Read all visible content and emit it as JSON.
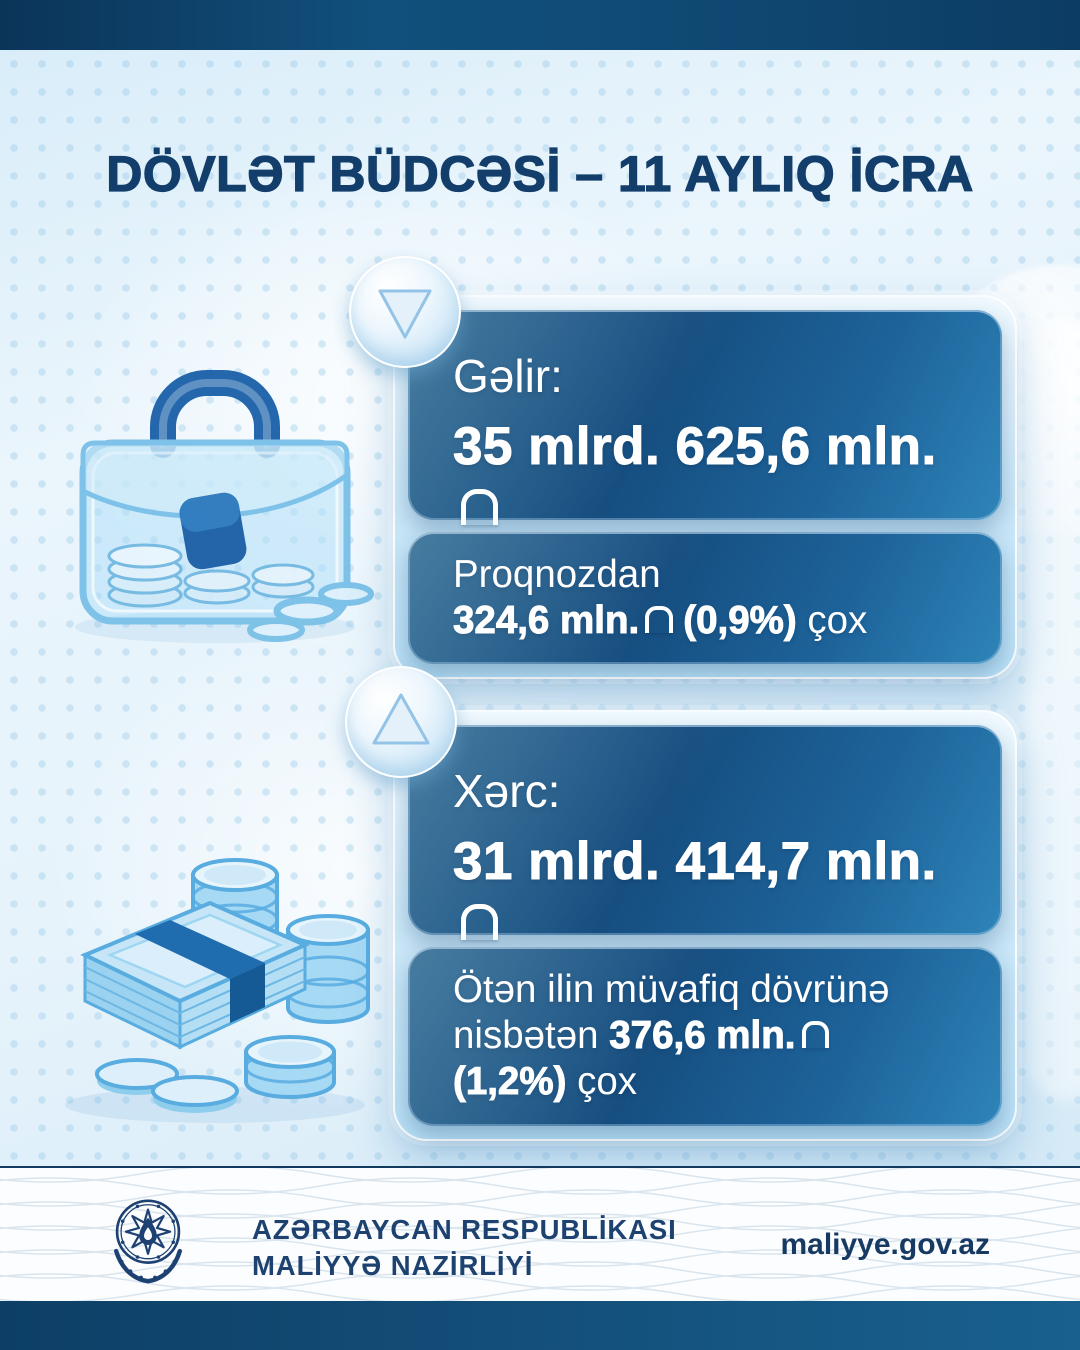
{
  "title": "DÖVLƏT BÜDCƏSİ – 11 AYLIQ İCRA",
  "colors": {
    "navy_band": "#0d3f66",
    "card_blue_dark": "#164e80",
    "card_blue_light": "#2e84b8",
    "title_navy": "#133e6b",
    "footer_text_navy": "#1d4270",
    "background_light": "#e8f3fb",
    "text_white": "#ffffff"
  },
  "income": {
    "icon": "down-triangle",
    "label": "Gəlir:",
    "amount_segments": [
      {
        "text": "35 mlrd. 625,6 mln.",
        "bold": true
      },
      {
        "text": "₼",
        "manat": true,
        "bold": true
      }
    ],
    "note_lines": [
      [
        {
          "text": "Proqnozdan",
          "bold": false
        }
      ],
      [
        {
          "text": "324,6 mln.",
          "bold": true
        },
        {
          "text": "₼",
          "manat": true,
          "bold": true
        },
        {
          "text": " (0,9%)",
          "bold": true
        },
        {
          "text": " çox",
          "bold": false
        }
      ]
    ]
  },
  "expense": {
    "icon": "up-triangle",
    "label": "Xərc:",
    "amount_segments": [
      {
        "text": "31 mlrd. 414,7 mln.",
        "bold": true
      },
      {
        "text": "₼",
        "manat": true,
        "bold": true
      }
    ],
    "note_lines": [
      [
        {
          "text": "Ötən ilin müvafiq dövrünə",
          "bold": false
        }
      ],
      [
        {
          "text": "nisbətən ",
          "bold": false
        },
        {
          "text": "376,6 mln.",
          "bold": true
        },
        {
          "text": "₼",
          "manat": true,
          "bold": true
        }
      ],
      [
        {
          "text": "(1,2%)",
          "bold": true
        },
        {
          "text": " çox",
          "bold": false
        }
      ]
    ]
  },
  "footer": {
    "org_line1": "AZƏRBAYCAN RESPUBLİKASI",
    "org_line2": "MALİYYƏ NAZİRLİYİ",
    "website": "maliyye.gov.az"
  }
}
